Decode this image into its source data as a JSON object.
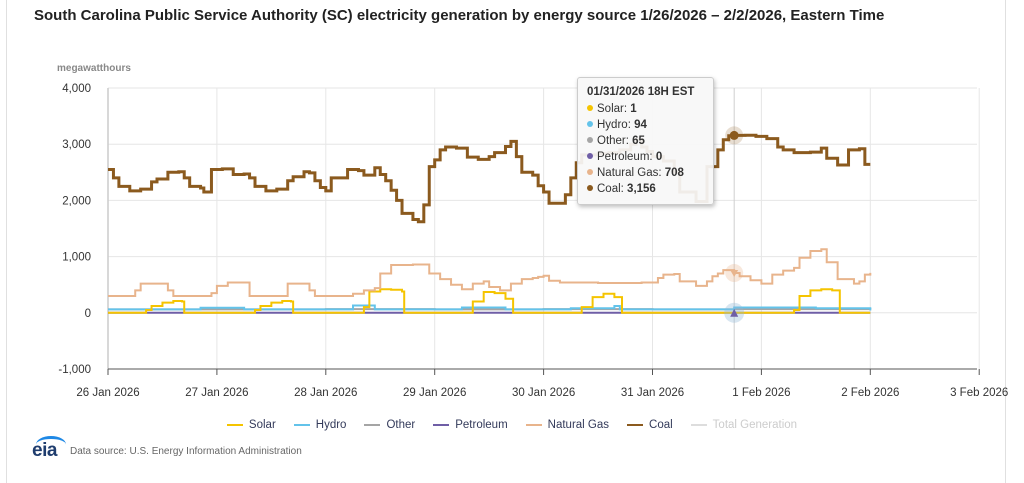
{
  "page": {
    "title": "South Carolina Public Service Authority (SC) electricity generation by energy source 1/26/2026 – 2/2/2026, Eastern Time",
    "source_text": "Data source: U.S. Energy Information Administration",
    "logo_text": "eia"
  },
  "tooltip": {
    "title": "01/31/2026 18H EST",
    "rows": [
      {
        "label": "Solar",
        "value": "1",
        "color": "#f5c400"
      },
      {
        "label": "Hydro",
        "value": "94",
        "color": "#63c3ea"
      },
      {
        "label": "Other",
        "value": "65",
        "color": "#a5a5a5"
      },
      {
        "label": "Petroleum",
        "value": "0",
        "color": "#6f5ea6"
      },
      {
        "label": "Natural Gas",
        "value": "708",
        "color": "#e8b48c"
      },
      {
        "label": "Coal",
        "value": "3,156",
        "color": "#8b5a1e"
      }
    ]
  },
  "chart_data": {
    "type": "line",
    "title": "South Carolina Public Service Authority (SC) electricity generation by energy source 1/26/2026 – 2/2/2026, Eastern Time",
    "ylabel": "megawatthours",
    "xlabel": "",
    "ylim": [
      -1000,
      4000
    ],
    "yticks": [
      -1000,
      0,
      1000,
      2000,
      3000,
      4000
    ],
    "ytick_labels": [
      "-1,000",
      "0",
      "1,000",
      "2,000",
      "3,000",
      "4,000"
    ],
    "xlim_days": [
      0,
      8.25
    ],
    "xticks_days": [
      0,
      1,
      2,
      3,
      4,
      5,
      6,
      7,
      8
    ],
    "xtick_labels": [
      "26 Jan 2026",
      "27 Jan 2026",
      "28 Jan 2026",
      "29 Jan 2026",
      "30 Jan 2026",
      "31 Jan 2026",
      "1 Feb 2026",
      "2 Feb 2026",
      "3 Feb 2026"
    ],
    "x_unit": "days since 26 Jan 2026 00:00",
    "grid": true,
    "legend_position": "bottom",
    "hover_point": {
      "x": 5.75,
      "label": "01/31/2026 18H EST"
    },
    "series": [
      {
        "name": "Solar",
        "color": "#f5c400",
        "visible": true,
        "points": [
          [
            0,
            0
          ],
          [
            0.3,
            0
          ],
          [
            0.35,
            50
          ],
          [
            0.4,
            120
          ],
          [
            0.5,
            180
          ],
          [
            0.6,
            210
          ],
          [
            0.68,
            200
          ],
          [
            0.7,
            0
          ],
          [
            1.3,
            0
          ],
          [
            1.35,
            50
          ],
          [
            1.4,
            120
          ],
          [
            1.5,
            180
          ],
          [
            1.6,
            210
          ],
          [
            1.68,
            200
          ],
          [
            1.7,
            0
          ],
          [
            2.3,
            0
          ],
          [
            2.35,
            100
          ],
          [
            2.4,
            380
          ],
          [
            2.5,
            420
          ],
          [
            2.6,
            410
          ],
          [
            2.7,
            380
          ],
          [
            2.72,
            0
          ],
          [
            3.3,
            0
          ],
          [
            3.35,
            200
          ],
          [
            3.45,
            370
          ],
          [
            3.55,
            350
          ],
          [
            3.65,
            250
          ],
          [
            3.72,
            0
          ],
          [
            4.3,
            0
          ],
          [
            4.35,
            100
          ],
          [
            4.45,
            280
          ],
          [
            4.55,
            340
          ],
          [
            4.65,
            280
          ],
          [
            4.72,
            0
          ],
          [
            5.3,
            0
          ],
          [
            5.75,
            1
          ],
          [
            6.3,
            50
          ],
          [
            6.35,
            300
          ],
          [
            6.45,
            400
          ],
          [
            6.55,
            420
          ],
          [
            6.65,
            400
          ],
          [
            6.72,
            0
          ],
          [
            7.0,
            0
          ]
        ]
      },
      {
        "name": "Hydro",
        "color": "#63c3ea",
        "visible": true,
        "points": [
          [
            0,
            60
          ],
          [
            0.8,
            60
          ],
          [
            0.85,
            90
          ],
          [
            1.2,
            90
          ],
          [
            1.25,
            60
          ],
          [
            2.2,
            60
          ],
          [
            2.25,
            130
          ],
          [
            2.4,
            130
          ],
          [
            2.45,
            60
          ],
          [
            3.2,
            60
          ],
          [
            3.25,
            94
          ],
          [
            3.6,
            94
          ],
          [
            3.65,
            60
          ],
          [
            4.2,
            60
          ],
          [
            4.25,
            80
          ],
          [
            4.6,
            80
          ],
          [
            4.65,
            120
          ],
          [
            4.7,
            60
          ],
          [
            5.2,
            60
          ],
          [
            5.75,
            94
          ],
          [
            6.0,
            94
          ],
          [
            6.5,
            80
          ],
          [
            7.0,
            40
          ]
        ]
      },
      {
        "name": "Other",
        "color": "#a5a5a5",
        "visible": true,
        "points": [
          [
            0,
            60
          ],
          [
            1,
            62
          ],
          [
            2,
            65
          ],
          [
            3,
            60
          ],
          [
            4,
            65
          ],
          [
            5,
            62
          ],
          [
            5.75,
            65
          ],
          [
            6.5,
            65
          ],
          [
            7.0,
            60
          ]
        ]
      },
      {
        "name": "Petroleum",
        "color": "#6f5ea6",
        "visible": true,
        "points": [
          [
            0,
            0
          ],
          [
            7.0,
            0
          ]
        ]
      },
      {
        "name": "Natural Gas",
        "color": "#e8b48c",
        "visible": true,
        "points": [
          [
            0,
            300
          ],
          [
            0.2,
            300
          ],
          [
            0.25,
            400
          ],
          [
            0.3,
            520
          ],
          [
            0.5,
            520
          ],
          [
            0.55,
            400
          ],
          [
            0.6,
            300
          ],
          [
            0.9,
            300
          ],
          [
            0.95,
            350
          ],
          [
            1.0,
            480
          ],
          [
            1.1,
            540
          ],
          [
            1.25,
            540
          ],
          [
            1.3,
            300
          ],
          [
            1.6,
            300
          ],
          [
            1.65,
            520
          ],
          [
            1.8,
            520
          ],
          [
            1.85,
            400
          ],
          [
            1.9,
            300
          ],
          [
            2.2,
            300
          ],
          [
            2.25,
            340
          ],
          [
            2.35,
            400
          ],
          [
            2.45,
            440
          ],
          [
            2.5,
            700
          ],
          [
            2.6,
            850
          ],
          [
            2.8,
            860
          ],
          [
            2.9,
            860
          ],
          [
            2.95,
            700
          ],
          [
            3.05,
            600
          ],
          [
            3.15,
            500
          ],
          [
            3.25,
            420
          ],
          [
            3.35,
            520
          ],
          [
            3.45,
            560
          ],
          [
            3.5,
            460
          ],
          [
            3.6,
            400
          ],
          [
            3.7,
            520
          ],
          [
            3.8,
            600
          ],
          [
            3.9,
            620
          ],
          [
            3.95,
            640
          ],
          [
            4.0,
            660
          ],
          [
            4.05,
            570
          ],
          [
            4.15,
            540
          ],
          [
            4.5,
            530
          ],
          [
            4.9,
            540
          ],
          [
            5.0,
            540
          ],
          [
            5.05,
            620
          ],
          [
            5.1,
            680
          ],
          [
            5.2,
            690
          ],
          [
            5.25,
            560
          ],
          [
            5.4,
            480
          ],
          [
            5.5,
            560
          ],
          [
            5.55,
            650
          ],
          [
            5.6,
            700
          ],
          [
            5.65,
            760
          ],
          [
            5.75,
            708
          ],
          [
            5.8,
            650
          ],
          [
            5.9,
            580
          ],
          [
            6.0,
            520
          ],
          [
            6.1,
            680
          ],
          [
            6.2,
            750
          ],
          [
            6.3,
            800
          ],
          [
            6.35,
            980
          ],
          [
            6.45,
            1100
          ],
          [
            6.55,
            1130
          ],
          [
            6.6,
            900
          ],
          [
            6.7,
            600
          ],
          [
            6.85,
            520
          ],
          [
            6.9,
            560
          ],
          [
            6.95,
            680
          ],
          [
            7.0,
            710
          ]
        ]
      },
      {
        "name": "Coal",
        "color": "#8b5a1e",
        "visible": true,
        "points": [
          [
            0,
            2550
          ],
          [
            0.05,
            2400
          ],
          [
            0.1,
            2250
          ],
          [
            0.2,
            2170
          ],
          [
            0.3,
            2200
          ],
          [
            0.4,
            2330
          ],
          [
            0.45,
            2380
          ],
          [
            0.55,
            2500
          ],
          [
            0.65,
            2510
          ],
          [
            0.7,
            2400
          ],
          [
            0.75,
            2250
          ],
          [
            0.85,
            2220
          ],
          [
            0.88,
            2150
          ],
          [
            0.95,
            2550
          ],
          [
            1.05,
            2560
          ],
          [
            1.15,
            2460
          ],
          [
            1.25,
            2470
          ],
          [
            1.3,
            2400
          ],
          [
            1.35,
            2250
          ],
          [
            1.45,
            2170
          ],
          [
            1.55,
            2200
          ],
          [
            1.65,
            2350
          ],
          [
            1.7,
            2420
          ],
          [
            1.8,
            2510
          ],
          [
            1.85,
            2490
          ],
          [
            1.9,
            2350
          ],
          [
            1.95,
            2230
          ],
          [
            2.0,
            2170
          ],
          [
            2.05,
            2400
          ],
          [
            2.2,
            2550
          ],
          [
            2.3,
            2530
          ],
          [
            2.35,
            2450
          ],
          [
            2.45,
            2580
          ],
          [
            2.5,
            2460
          ],
          [
            2.55,
            2350
          ],
          [
            2.6,
            2180
          ],
          [
            2.65,
            2000
          ],
          [
            2.7,
            1770
          ],
          [
            2.8,
            1660
          ],
          [
            2.85,
            1620
          ],
          [
            2.9,
            1920
          ],
          [
            2.95,
            2600
          ],
          [
            3.0,
            2720
          ],
          [
            3.05,
            2900
          ],
          [
            3.1,
            2950
          ],
          [
            3.2,
            2930
          ],
          [
            3.3,
            2770
          ],
          [
            3.4,
            2730
          ],
          [
            3.5,
            2780
          ],
          [
            3.55,
            2850
          ],
          [
            3.65,
            2960
          ],
          [
            3.7,
            3050
          ],
          [
            3.75,
            2780
          ],
          [
            3.8,
            2500
          ],
          [
            3.9,
            2450
          ],
          [
            3.95,
            2260
          ],
          [
            4.0,
            2150
          ],
          [
            4.05,
            1950
          ],
          [
            4.15,
            1950
          ],
          [
            4.2,
            2100
          ],
          [
            4.25,
            2400
          ],
          [
            4.3,
            2670
          ],
          [
            4.35,
            2810
          ],
          [
            4.5,
            2830
          ],
          [
            4.6,
            2850
          ],
          [
            4.7,
            2900
          ],
          [
            4.8,
            3000
          ],
          [
            4.85,
            3080
          ],
          [
            4.9,
            2950
          ],
          [
            4.95,
            2870
          ],
          [
            5.0,
            2780
          ],
          [
            5.1,
            2700
          ],
          [
            5.2,
            2500
          ],
          [
            5.25,
            2150
          ],
          [
            5.4,
            1980
          ],
          [
            5.5,
            2600
          ],
          [
            5.6,
            2900
          ],
          [
            5.65,
            3080
          ],
          [
            5.7,
            3150
          ],
          [
            5.75,
            3156
          ],
          [
            5.85,
            3160
          ],
          [
            5.95,
            3140
          ],
          [
            6.05,
            3100
          ],
          [
            6.15,
            2950
          ],
          [
            6.2,
            2900
          ],
          [
            6.3,
            2850
          ],
          [
            6.45,
            2860
          ],
          [
            6.55,
            2930
          ],
          [
            6.6,
            2750
          ],
          [
            6.7,
            2630
          ],
          [
            6.8,
            2900
          ],
          [
            6.9,
            2920
          ],
          [
            6.95,
            2640
          ],
          [
            7.0,
            2640
          ]
        ]
      },
      {
        "name": "Total Generation",
        "color": "#cccccc",
        "visible": false,
        "points": []
      }
    ]
  }
}
